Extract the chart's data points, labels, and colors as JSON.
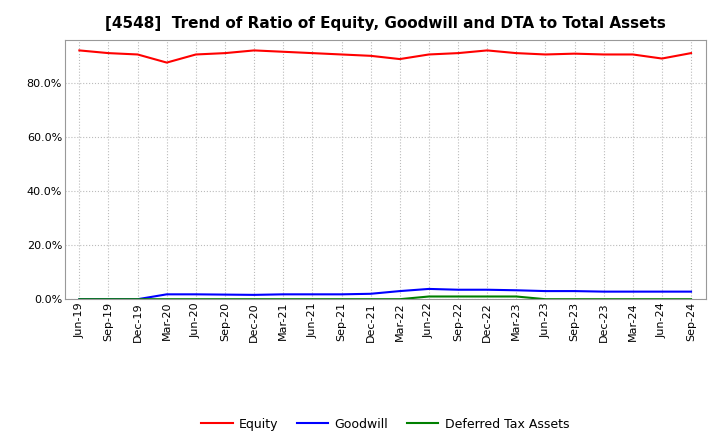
{
  "title": "[4548]  Trend of Ratio of Equity, Goodwill and DTA to Total Assets",
  "labels": [
    "Jun-19",
    "Sep-19",
    "Dec-19",
    "Mar-20",
    "Jun-20",
    "Sep-20",
    "Dec-20",
    "Mar-21",
    "Jun-21",
    "Sep-21",
    "Dec-21",
    "Mar-22",
    "Jun-22",
    "Sep-22",
    "Dec-22",
    "Mar-23",
    "Jun-23",
    "Sep-23",
    "Dec-23",
    "Mar-24",
    "Jun-24",
    "Sep-24"
  ],
  "equity": [
    0.92,
    0.91,
    0.905,
    0.875,
    0.905,
    0.91,
    0.92,
    0.915,
    0.91,
    0.905,
    0.9,
    0.888,
    0.905,
    0.91,
    0.92,
    0.91,
    0.905,
    0.908,
    0.905,
    0.905,
    0.89,
    0.91
  ],
  "goodwill": [
    0.0,
    0.0,
    0.0,
    0.018,
    0.018,
    0.017,
    0.016,
    0.018,
    0.018,
    0.018,
    0.02,
    0.03,
    0.038,
    0.035,
    0.035,
    0.033,
    0.03,
    0.03,
    0.028,
    0.028,
    0.028,
    0.028
  ],
  "dta": [
    0.0,
    0.0,
    0.0,
    0.0,
    0.0,
    0.0,
    0.0,
    0.0,
    0.0,
    0.0,
    0.0,
    0.0,
    0.01,
    0.01,
    0.01,
    0.01,
    0.0,
    0.0,
    0.0,
    0.0,
    0.0,
    0.0
  ],
  "equity_color": "#FF0000",
  "goodwill_color": "#0000FF",
  "dta_color": "#008000",
  "ylim": [
    0.0,
    0.96
  ],
  "yticks": [
    0.0,
    0.2,
    0.4,
    0.6,
    0.8
  ],
  "background_color": "#FFFFFF",
  "grid_color": "#BBBBBB",
  "legend_labels": [
    "Equity",
    "Goodwill",
    "Deferred Tax Assets"
  ],
  "title_fontsize": 11,
  "tick_fontsize": 8,
  "legend_fontsize": 9
}
